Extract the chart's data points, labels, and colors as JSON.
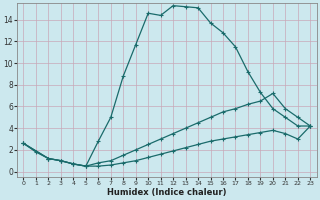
{
  "xlabel": "Humidex (Indice chaleur)",
  "bg_color": "#cce8ee",
  "line_color": "#1a6b6b",
  "grid_color": "#b8d8e0",
  "xlim": [
    -0.5,
    23.5
  ],
  "ylim": [
    -0.5,
    15.5
  ],
  "xticks": [
    0,
    1,
    2,
    3,
    4,
    5,
    6,
    7,
    8,
    9,
    10,
    11,
    12,
    13,
    14,
    15,
    16,
    17,
    18,
    19,
    20,
    21,
    22,
    23
  ],
  "yticks": [
    0,
    2,
    4,
    6,
    8,
    10,
    12,
    14
  ],
  "curve1_x": [
    0,
    1,
    2,
    3,
    4,
    5,
    6,
    7,
    8,
    9,
    10,
    11,
    12,
    13,
    14,
    15,
    16,
    17,
    18,
    19,
    20,
    21,
    22,
    23
  ],
  "curve1_y": [
    2.6,
    1.8,
    1.2,
    1.0,
    0.7,
    0.5,
    2.8,
    5.0,
    8.8,
    11.7,
    14.6,
    14.4,
    15.3,
    15.2,
    15.1,
    13.7,
    12.8,
    11.5,
    9.2,
    7.3,
    5.8,
    5.0,
    4.2,
    4.2
  ],
  "curve2_x": [
    0,
    2,
    3,
    4,
    5,
    6,
    7,
    8,
    9,
    10,
    11,
    12,
    13,
    14,
    15,
    16,
    17,
    18,
    19,
    20,
    21,
    22,
    23
  ],
  "curve2_y": [
    2.6,
    1.2,
    1.0,
    0.7,
    0.5,
    0.8,
    1.0,
    1.5,
    2.0,
    2.5,
    3.0,
    3.5,
    4.0,
    4.5,
    5.0,
    5.5,
    5.8,
    6.2,
    6.5,
    7.2,
    5.8,
    5.0,
    4.2
  ],
  "curve3_x": [
    0,
    2,
    3,
    4,
    5,
    6,
    7,
    8,
    9,
    10,
    11,
    12,
    13,
    14,
    15,
    16,
    17,
    18,
    19,
    20,
    21,
    22,
    23
  ],
  "curve3_y": [
    2.6,
    1.2,
    1.0,
    0.7,
    0.5,
    0.5,
    0.6,
    0.8,
    1.0,
    1.3,
    1.6,
    1.9,
    2.2,
    2.5,
    2.8,
    3.0,
    3.2,
    3.4,
    3.6,
    3.8,
    3.5,
    3.0,
    4.2
  ]
}
